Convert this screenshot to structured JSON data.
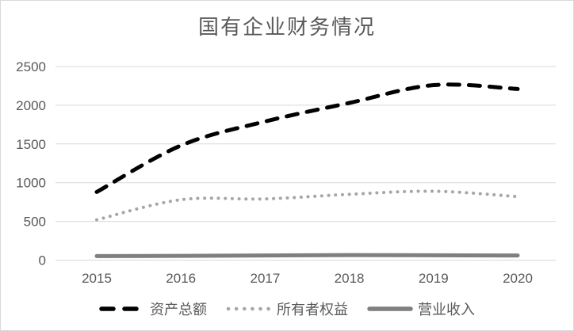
{
  "chart_data": {
    "type": "line",
    "title": "国有企业财务情况",
    "categories": [
      "2015",
      "2016",
      "2017",
      "2018",
      "2019",
      "2020"
    ],
    "series": [
      {
        "name": "资产总额",
        "line_style": "dashed",
        "color": "#000000",
        "values": [
          880,
          1480,
          1790,
          2030,
          2260,
          2210
        ]
      },
      {
        "name": "所有者权益",
        "line_style": "dotted",
        "color": "#a6a6a6",
        "values": [
          520,
          780,
          790,
          850,
          890,
          820
        ]
      },
      {
        "name": "营业收入",
        "line_style": "solid",
        "color": "#7f7f7f",
        "values": [
          52,
          55,
          60,
          65,
          62,
          60
        ]
      }
    ],
    "xlabel": "",
    "ylabel": "",
    "y_ticks": [
      0,
      500,
      1000,
      1500,
      2000,
      2500
    ],
    "ylim": [
      0,
      2500
    ],
    "grid": true,
    "smooth_lines": true,
    "legend_position": "bottom",
    "styles": {
      "gridline_color": "#d9d9d9",
      "tick_label_color": "#595959",
      "title_color": "#595959",
      "border_color": "#d9d9d9",
      "background": "#ffffff"
    }
  }
}
